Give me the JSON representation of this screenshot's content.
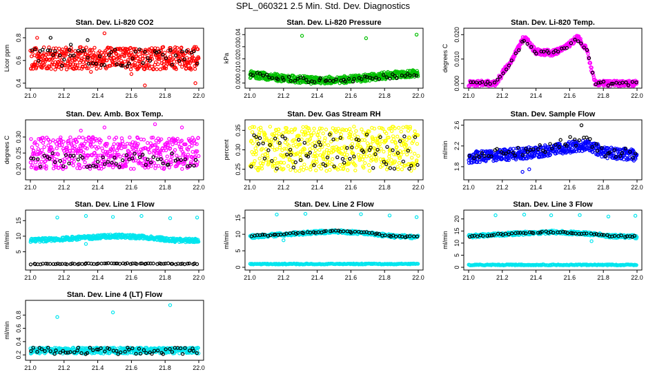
{
  "page": {
    "title": "SPL_060321  2.5 Min. Std. Dev. Diagnostics"
  },
  "chart_data": [
    {
      "id": "co2",
      "type": "scatter",
      "title": "Stan. Dev. Li-820 CO2",
      "ylabel": "Licor ppm",
      "xlabel": "",
      "xlim": [
        21.0,
        22.0
      ],
      "ylim": [
        0.38,
        0.86
      ],
      "xticks": [
        "21.0",
        "21.2",
        "21.4",
        "21.6",
        "21.8",
        "22.0"
      ],
      "yticks": [
        "0.4",
        "0.6",
        "0.8"
      ],
      "series": [
        {
          "color": "#ff0000",
          "band": {
            "lo": 0.52,
            "hi": 0.72,
            "n": 520
          },
          "outliers": [
            [
              21.04,
              0.8
            ],
            [
              21.44,
              0.84
            ],
            [
              21.68,
              0.38
            ],
            [
              21.98,
              0.4
            ],
            [
              21.36,
              0.5
            ],
            [
              21.6,
              0.48
            ]
          ]
        },
        {
          "color": "#000000",
          "band": {
            "lo": 0.55,
            "hi": 0.7,
            "n": 55
          },
          "outliers": [
            [
              21.12,
              0.8
            ],
            [
              21.24,
              0.74
            ],
            [
              21.34,
              0.78
            ]
          ]
        }
      ]
    },
    {
      "id": "pressure",
      "type": "scatter",
      "title": "Stan. Dev. Li-820 Pressure",
      "ylabel": "kPa",
      "xlabel": "",
      "xlim": [
        21.0,
        22.0
      ],
      "ylim": [
        -0.002,
        0.043
      ],
      "xticks": [
        "21.0",
        "21.2",
        "21.4",
        "21.6",
        "21.8",
        "22.0"
      ],
      "yticks": [
        "0.00",
        "0.01",
        "0.02",
        "0.03",
        "0.04"
      ],
      "series": [
        {
          "color": "#00c000",
          "curve": [
            [
              21.0,
              0.007
            ],
            [
              21.2,
              0.004
            ],
            [
              21.4,
              0.002
            ],
            [
              21.6,
              0.003
            ],
            [
              21.8,
              0.006
            ],
            [
              22.0,
              0.008
            ]
          ],
          "spread": 0.003,
          "n": 520,
          "outliers": [
            [
              21.31,
              0.039
            ],
            [
              21.69,
              0.037
            ],
            [
              21.99,
              0.04
            ]
          ]
        },
        {
          "color": "#000000",
          "curve": [
            [
              21.0,
              0.007
            ],
            [
              21.2,
              0.004
            ],
            [
              21.4,
              0.002
            ],
            [
              21.6,
              0.003
            ],
            [
              21.8,
              0.005
            ],
            [
              22.0,
              0.007
            ]
          ],
          "spread": 0.002,
          "n": 55,
          "outliers": []
        }
      ]
    },
    {
      "id": "temp",
      "type": "scatter",
      "title": "Stan. Dev. Li-820 Temp.",
      "ylabel": "degrees C",
      "xlabel": "",
      "xlim": [
        21.0,
        22.0
      ],
      "ylim": [
        -0.0008,
        0.0215
      ],
      "xticks": [
        "21.0",
        "21.2",
        "21.4",
        "21.6",
        "21.8",
        "22.0"
      ],
      "yticks": [
        "0.000",
        "0.010",
        "0.020"
      ],
      "series": [
        {
          "color": "#ff00ff",
          "curve": [
            [
              21.0,
              0.0
            ],
            [
              21.16,
              0.0
            ],
            [
              21.2,
              0.004
            ],
            [
              21.26,
              0.01
            ],
            [
              21.33,
              0.019
            ],
            [
              21.4,
              0.013
            ],
            [
              21.5,
              0.0125
            ],
            [
              21.56,
              0.014
            ],
            [
              21.65,
              0.019
            ],
            [
              21.7,
              0.014
            ],
            [
              21.75,
              0.0
            ],
            [
              22.0,
              0.0
            ]
          ],
          "spread": 0.0012,
          "n": 480,
          "outliers": []
        },
        {
          "color": "#000000",
          "curve": [
            [
              21.0,
              0.0
            ],
            [
              21.16,
              0.0
            ],
            [
              21.2,
              0.004
            ],
            [
              21.26,
              0.01
            ],
            [
              21.33,
              0.018
            ],
            [
              21.4,
              0.013
            ],
            [
              21.5,
              0.0125
            ],
            [
              21.56,
              0.014
            ],
            [
              21.65,
              0.018
            ],
            [
              21.7,
              0.014
            ],
            [
              21.75,
              0.0
            ],
            [
              22.0,
              0.0
            ]
          ],
          "spread": 0.0008,
          "n": 55,
          "outliers": []
        }
      ]
    },
    {
      "id": "boxtemp",
      "type": "scatter",
      "title": "Stan. Dev. Amb. Box Temp.",
      "ylabel": "degrees C",
      "xlabel": "",
      "xlim": [
        21.0,
        22.0
      ],
      "ylim": [
        0.175,
        0.345
      ],
      "xticks": [
        "21.0",
        "21.2",
        "21.4",
        "21.6",
        "21.8",
        "22.0"
      ],
      "yticks": [
        "0.20",
        "0.25",
        "0.30"
      ],
      "series": [
        {
          "color": "#ff00ff",
          "band": {
            "lo": 0.2,
            "hi": 0.3,
            "n": 520
          },
          "outliers": [
            [
              21.3,
              0.32
            ],
            [
              21.44,
              0.33
            ],
            [
              21.74,
              0.34
            ],
            [
              21.9,
              0.33
            ]
          ]
        },
        {
          "color": "#000000",
          "band": {
            "lo": 0.205,
            "hi": 0.25,
            "n": 55
          },
          "outliers": []
        }
      ]
    },
    {
      "id": "rh",
      "type": "scatter",
      "title": "Stan. Dev. Gas Stream RH",
      "ylabel": "percent",
      "xlabel": "",
      "xlim": [
        21.0,
        22.0
      ],
      "ylim": [
        0.23,
        0.37
      ],
      "xticks": [
        "21.0",
        "21.2",
        "21.4",
        "21.6",
        "21.8",
        "22.0"
      ],
      "yticks": [
        "0.25",
        "0.30",
        "0.35"
      ],
      "series": [
        {
          "color": "#ffff00",
          "band": {
            "lo": 0.245,
            "hi": 0.36,
            "n": 520
          },
          "outliers": []
        },
        {
          "color": "#000000",
          "band": {
            "lo": 0.25,
            "hi": 0.34,
            "n": 70
          },
          "outliers": []
        }
      ]
    },
    {
      "id": "sampleflow",
      "type": "scatter",
      "title": "Stan. Dev. Sample Flow",
      "ylabel": "ml/min",
      "xlabel": "",
      "xlim": [
        21.0,
        22.0
      ],
      "ylim": [
        1.6,
        2.65
      ],
      "xticks": [
        "21.0",
        "21.2",
        "21.4",
        "21.6",
        "21.8",
        "22.0"
      ],
      "yticks": [
        "1.8",
        "2.2",
        "2.6"
      ],
      "series": [
        {
          "color": "#0000ff",
          "curve": [
            [
              21.0,
              1.98
            ],
            [
              21.3,
              2.05
            ],
            [
              21.5,
              2.12
            ],
            [
              21.7,
              2.22
            ],
            [
              21.8,
              2.08
            ],
            [
              22.0,
              2.02
            ]
          ],
          "spread": 0.11,
          "n": 520,
          "outliers": [
            [
              21.32,
              1.7
            ],
            [
              21.36,
              1.75
            ]
          ]
        },
        {
          "color": "#000000",
          "curve": [
            [
              21.0,
              2.0
            ],
            [
              21.3,
              2.1
            ],
            [
              21.5,
              2.2
            ],
            [
              21.7,
              2.35
            ],
            [
              21.8,
              2.1
            ],
            [
              22.0,
              2.05
            ]
          ],
          "spread": 0.1,
          "n": 55,
          "outliers": [
            [
              21.67,
              2.6
            ]
          ]
        }
      ]
    },
    {
      "id": "line1",
      "type": "scatter",
      "title": "Stan. Dev. Line 1 Flow",
      "ylabel": "ml/min",
      "xlabel": "",
      "xlim": [
        21.0,
        22.0
      ],
      "ylim": [
        0.0,
        17.5
      ],
      "xticks": [
        "21.0",
        "21.2",
        "21.4",
        "21.6",
        "21.8",
        "22.0"
      ],
      "yticks": [
        "5",
        "10",
        "15"
      ],
      "series": [
        {
          "color": "#00e5ee",
          "curve": [
            [
              21.0,
              8.6
            ],
            [
              21.3,
              9.4
            ],
            [
              21.5,
              10.1
            ],
            [
              21.7,
              9.6
            ],
            [
              21.85,
              8.7
            ],
            [
              22.0,
              8.6
            ]
          ],
          "spread": 0.6,
          "n": 480,
          "outliers": [
            [
              21.16,
              16.0
            ],
            [
              21.33,
              16.5
            ],
            [
              21.49,
              16.2
            ],
            [
              21.66,
              16.5
            ],
            [
              21.83,
              15.8
            ],
            [
              21.99,
              16.0
            ],
            [
              21.33,
              7.5
            ]
          ]
        },
        {
          "color": "#000000",
          "curve": [
            [
              21.0,
              1.0
            ],
            [
              21.5,
              1.2
            ],
            [
              22.0,
              1.1
            ]
          ],
          "spread": 0.15,
          "n": 70,
          "outliers": []
        }
      ]
    },
    {
      "id": "line2",
      "type": "scatter",
      "title": "Stan. Dev. Line 2 Flow",
      "ylabel": "ml/min",
      "xlabel": "",
      "xlim": [
        21.0,
        22.0
      ],
      "ylim": [
        0.0,
        16.5
      ],
      "xticks": [
        "21.0",
        "21.2",
        "21.4",
        "21.6",
        "21.8",
        "22.0"
      ],
      "yticks": [
        "0",
        "5",
        "10",
        "15"
      ],
      "series": [
        {
          "color": "#00e5ee",
          "curve": [
            [
              21.0,
              9.3
            ],
            [
              21.3,
              10.3
            ],
            [
              21.5,
              10.9
            ],
            [
              21.7,
              10.3
            ],
            [
              21.85,
              9.4
            ],
            [
              22.0,
              9.2
            ]
          ],
          "spread": 0.5,
          "n": 420,
          "outliers": [
            [
              21.16,
              16.0
            ],
            [
              21.33,
              16.2
            ],
            [
              21.66,
              16.1
            ],
            [
              21.83,
              15.7
            ],
            [
              21.99,
              15.2
            ],
            [
              21.2,
              8.2
            ]
          ]
        },
        {
          "color": "#00e5ee",
          "curve": [
            [
              21.0,
              1.0
            ],
            [
              22.0,
              1.0
            ]
          ],
          "spread": 0.15,
          "n": 220,
          "outliers": []
        },
        {
          "color": "#000000",
          "curve": [
            [
              21.0,
              9.4
            ],
            [
              21.3,
              10.4
            ],
            [
              21.5,
              11.0
            ],
            [
              21.7,
              10.4
            ],
            [
              21.85,
              9.4
            ],
            [
              22.0,
              9.3
            ]
          ],
          "spread": 0.25,
          "n": 60,
          "outliers": []
        }
      ]
    },
    {
      "id": "line3",
      "type": "scatter",
      "title": "Stan. Dev. Line 3 Flow",
      "ylabel": "ml/min",
      "xlabel": "",
      "xlim": [
        21.0,
        22.0
      ],
      "ylim": [
        0.0,
        22.5
      ],
      "xticks": [
        "21.0",
        "21.2",
        "21.4",
        "21.6",
        "21.8",
        "22.0"
      ],
      "yticks": [
        "0",
        "5",
        "10",
        "15",
        "20"
      ],
      "series": [
        {
          "color": "#00e5ee",
          "curve": [
            [
              21.0,
              12.8
            ],
            [
              21.3,
              14.0
            ],
            [
              21.5,
              14.6
            ],
            [
              21.7,
              13.9
            ],
            [
              21.85,
              12.9
            ],
            [
              22.0,
              12.6
            ]
          ],
          "spread": 0.7,
          "n": 420,
          "outliers": [
            [
              21.16,
              21.5
            ],
            [
              21.33,
              21.8
            ],
            [
              21.49,
              21.5
            ],
            [
              21.66,
              21.6
            ],
            [
              21.83,
              21.0
            ],
            [
              21.99,
              21.3
            ],
            [
              21.73,
              10.8
            ]
          ]
        },
        {
          "color": "#00e5ee",
          "curve": [
            [
              21.0,
              1.0
            ],
            [
              22.0,
              1.0
            ]
          ],
          "spread": 0.2,
          "n": 220,
          "outliers": []
        },
        {
          "color": "#000000",
          "curve": [
            [
              21.0,
              12.9
            ],
            [
              21.3,
              14.1
            ],
            [
              21.5,
              14.6
            ],
            [
              21.7,
              14.0
            ],
            [
              21.85,
              12.9
            ],
            [
              22.0,
              12.8
            ]
          ],
          "spread": 0.35,
          "n": 60,
          "outliers": []
        }
      ]
    },
    {
      "id": "line4",
      "type": "scatter",
      "title": "Stan. Dev. Line 4 (LT) Flow",
      "ylabel": "ml/min",
      "xlabel": "",
      "xlim": [
        21.0,
        22.0
      ],
      "ylim": [
        0.16,
        0.98
      ],
      "xticks": [
        "21.0",
        "21.2",
        "21.4",
        "21.6",
        "21.8",
        "22.0"
      ],
      "yticks": [
        "0.2",
        "0.4",
        "0.6",
        "0.8"
      ],
      "series": [
        {
          "color": "#00e5ee",
          "band": {
            "lo": 0.22,
            "hi": 0.31,
            "n": 480
          },
          "outliers": [
            [
              21.16,
              0.77
            ],
            [
              21.49,
              0.84
            ],
            [
              21.83,
              0.95
            ]
          ]
        },
        {
          "color": "#000000",
          "band": {
            "lo": 0.21,
            "hi": 0.31,
            "n": 60
          },
          "outliers": []
        }
      ]
    }
  ]
}
